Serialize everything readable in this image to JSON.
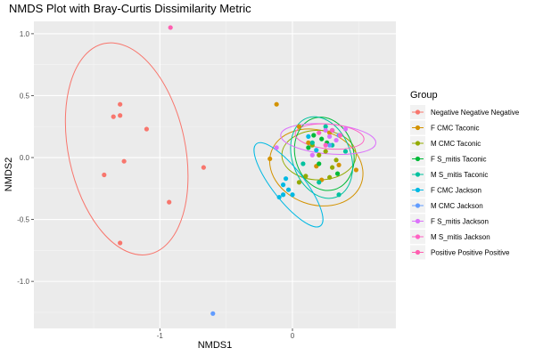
{
  "chart_data": {
    "type": "scatter",
    "title": "NMDS Plot with Bray-Curtis Dissimilarity Metric",
    "xlabel": "NMDS1",
    "ylabel": "NMDS2",
    "xlim": [
      -1.95,
      0.78
    ],
    "ylim": [
      -1.38,
      1.1
    ],
    "x_ticks": [
      -1,
      0
    ],
    "y_ticks": [
      -1.0,
      -0.5,
      0.0,
      0.5,
      1.0
    ],
    "x_tick_labels": [
      "-1",
      "0"
    ],
    "y_tick_labels": [
      "-1.0",
      "-0.5",
      "0.0",
      "0.5",
      "1.0"
    ],
    "grid": true,
    "legend_position": "right",
    "legend": {
      "title": "Group",
      "entries": [
        {
          "label": "Negative Negative Negative",
          "color": "#F8766D"
        },
        {
          "label": "F CMC Taconic",
          "color": "#D39200"
        },
        {
          "label": "M CMC Taconic",
          "color": "#93AA00"
        },
        {
          "label": "F S_mitis Taconic",
          "color": "#00BA38"
        },
        {
          "label": "M S_mitis Taconic",
          "color": "#00C19F"
        },
        {
          "label": "F CMC Jackson",
          "color": "#00B9E3"
        },
        {
          "label": "M CMC Jackson",
          "color": "#619CFF"
        },
        {
          "label": "F S_mitis Jackson",
          "color": "#DB72FB"
        },
        {
          "label": "M S_mitis Jackson",
          "color": "#FF61C3"
        },
        {
          "label": "Positive Positive Positive",
          "color": "#FF5EB0"
        }
      ]
    },
    "series": [
      {
        "name": "Negative Negative Negative",
        "color": "#F8766D",
        "points": [
          [
            -1.3,
            0.43
          ],
          [
            -1.35,
            0.33
          ],
          [
            -1.3,
            0.34
          ],
          [
            -1.1,
            0.23
          ],
          [
            -1.27,
            -0.03
          ],
          [
            -1.42,
            -0.14
          ],
          [
            -0.67,
            -0.08
          ],
          [
            -0.93,
            -0.36
          ],
          [
            -1.3,
            -0.69
          ]
        ],
        "ellipse": {
          "cx": -1.25,
          "cy": 0.07,
          "rx": 0.44,
          "ry": 0.87,
          "angle_deg": 12
        }
      },
      {
        "name": "F CMC Taconic",
        "color": "#D39200",
        "points": [
          [
            -0.12,
            0.43
          ],
          [
            -0.17,
            -0.01
          ],
          [
            0.18,
            -0.07
          ],
          [
            0.28,
            0.2
          ],
          [
            0.35,
            -0.06
          ],
          [
            0.22,
            -0.18
          ],
          [
            0.48,
            -0.1
          ],
          [
            0.05,
            0.25
          ],
          [
            0.12,
            0.12
          ]
        ],
        "ellipse": {
          "cx": 0.18,
          "cy": -0.08,
          "rx": 0.36,
          "ry": 0.3,
          "angle_deg": -20
        }
      },
      {
        "name": "M CMC Taconic",
        "color": "#93AA00",
        "points": [
          [
            0.1,
            -0.15
          ],
          [
            0.2,
            0.02
          ],
          [
            0.25,
            0.05
          ],
          [
            0.3,
            -0.08
          ],
          [
            0.15,
            0.1
          ],
          [
            0.05,
            -0.2
          ],
          [
            0.33,
            -0.02
          ],
          [
            0.28,
            -0.16
          ]
        ],
        "ellipse": {
          "cx": 0.2,
          "cy": 0.02,
          "rx": 0.28,
          "ry": 0.2,
          "angle_deg": 0
        }
      },
      {
        "name": "F S_mitis Taconic",
        "color": "#00BA38",
        "points": [
          [
            0.16,
            0.18
          ],
          [
            0.22,
            0.15
          ],
          [
            0.26,
            0.12
          ],
          [
            0.34,
            -0.13
          ],
          [
            0.2,
            -0.05
          ],
          [
            0.12,
            0.08
          ],
          [
            0.3,
            0.22
          ]
        ],
        "ellipse": {
          "cx": 0.24,
          "cy": 0.03,
          "rx": 0.22,
          "ry": 0.3,
          "angle_deg": 15
        }
      },
      {
        "name": "M S_mitis Taconic",
        "color": "#00C19F",
        "points": [
          [
            0.15,
            0.12
          ],
          [
            0.25,
            0.25
          ],
          [
            0.35,
            -0.3
          ],
          [
            0.08,
            -0.05
          ],
          [
            0.3,
            0.1
          ],
          [
            0.2,
            -0.2
          ],
          [
            0.4,
            0.05
          ]
        ],
        "ellipse": {
          "cx": 0.22,
          "cy": 0.0,
          "rx": 0.22,
          "ry": 0.34,
          "angle_deg": 20
        }
      },
      {
        "name": "F CMC Jackson",
        "color": "#00B9E3",
        "points": [
          [
            -0.07,
            -0.22
          ],
          [
            -0.03,
            -0.26
          ],
          [
            -0.1,
            -0.32
          ],
          [
            0.0,
            -0.3
          ],
          [
            -0.05,
            -0.17
          ],
          [
            -0.07,
            -0.3
          ],
          [
            0.12,
            0.17
          ],
          [
            0.18,
            0.06
          ]
        ],
        "ellipse": {
          "cx": -0.03,
          "cy": -0.22,
          "rx": 0.12,
          "ry": 0.42,
          "angle_deg": 38
        }
      },
      {
        "name": "M CMC Jackson",
        "color": "#619CFF",
        "points": [
          [
            -0.6,
            -1.26
          ],
          [
            0.3,
            0.22
          ],
          [
            0.35,
            0.18
          ],
          [
            0.28,
            0.1
          ]
        ],
        "ellipse": null
      },
      {
        "name": "F S_mitis Jackson",
        "color": "#DB72FB",
        "points": [
          [
            -0.12,
            0.08
          ],
          [
            0.25,
            0.22
          ],
          [
            0.33,
            0.14
          ],
          [
            0.4,
            0.23
          ],
          [
            0.28,
            0.17
          ],
          [
            0.15,
            0.02
          ]
        ],
        "ellipse": {
          "cx": 0.27,
          "cy": 0.15,
          "rx": 0.36,
          "ry": 0.12,
          "angle_deg": -5
        }
      },
      {
        "name": "M S_mitis Jackson",
        "color": "#FF61C3",
        "points": [
          [
            0.2,
            0.2
          ],
          [
            0.3,
            0.22
          ],
          [
            0.36,
            0.18
          ],
          [
            0.25,
            0.1
          ]
        ],
        "ellipse": {
          "cx": 0.28,
          "cy": 0.17,
          "rx": 0.26,
          "ry": 0.1,
          "angle_deg": -5
        }
      },
      {
        "name": "Positive Positive Positive",
        "color": "#FF5EB0",
        "points": [
          [
            -0.92,
            1.05
          ]
        ],
        "ellipse": null
      }
    ]
  }
}
